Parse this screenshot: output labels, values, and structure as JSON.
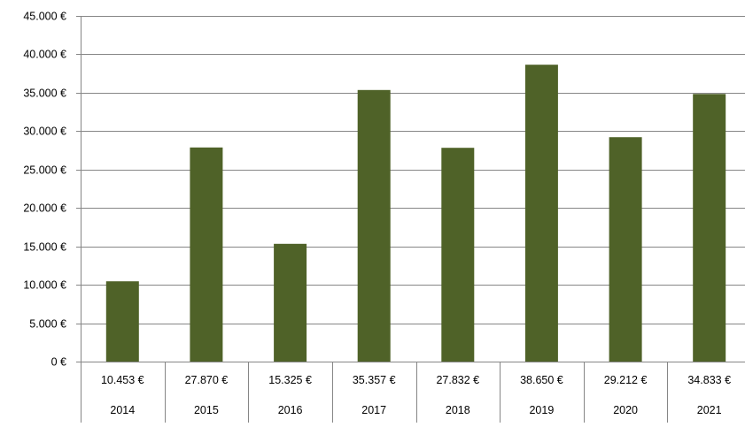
{
  "chart_data": {
    "type": "bar",
    "categories": [
      "2014",
      "2015",
      "2016",
      "2017",
      "2018",
      "2019",
      "2020",
      "2021"
    ],
    "values": [
      10453,
      27870,
      15325,
      35357,
      27832,
      38650,
      29212,
      34833
    ],
    "value_labels": [
      "10.453 €",
      "27.870 €",
      "15.325 €",
      "35.357 €",
      "27.832 €",
      "38.650 €",
      "29.212 €",
      "34.833 €"
    ],
    "y_ticks": [
      0,
      5000,
      10000,
      15000,
      20000,
      25000,
      30000,
      35000,
      40000,
      45000
    ],
    "y_tick_labels": [
      "0 €",
      "5.000 €",
      "10.000 €",
      "15.000 €",
      "20.000 €",
      "25.000 €",
      "30.000 €",
      "35.000 €",
      "40.000 €",
      "45.000 €"
    ],
    "ylim": [
      0,
      45000
    ],
    "grid": true,
    "bar_color": "#4f6228",
    "grid_color": "#868686",
    "title": "",
    "xlabel": "",
    "ylabel": ""
  }
}
